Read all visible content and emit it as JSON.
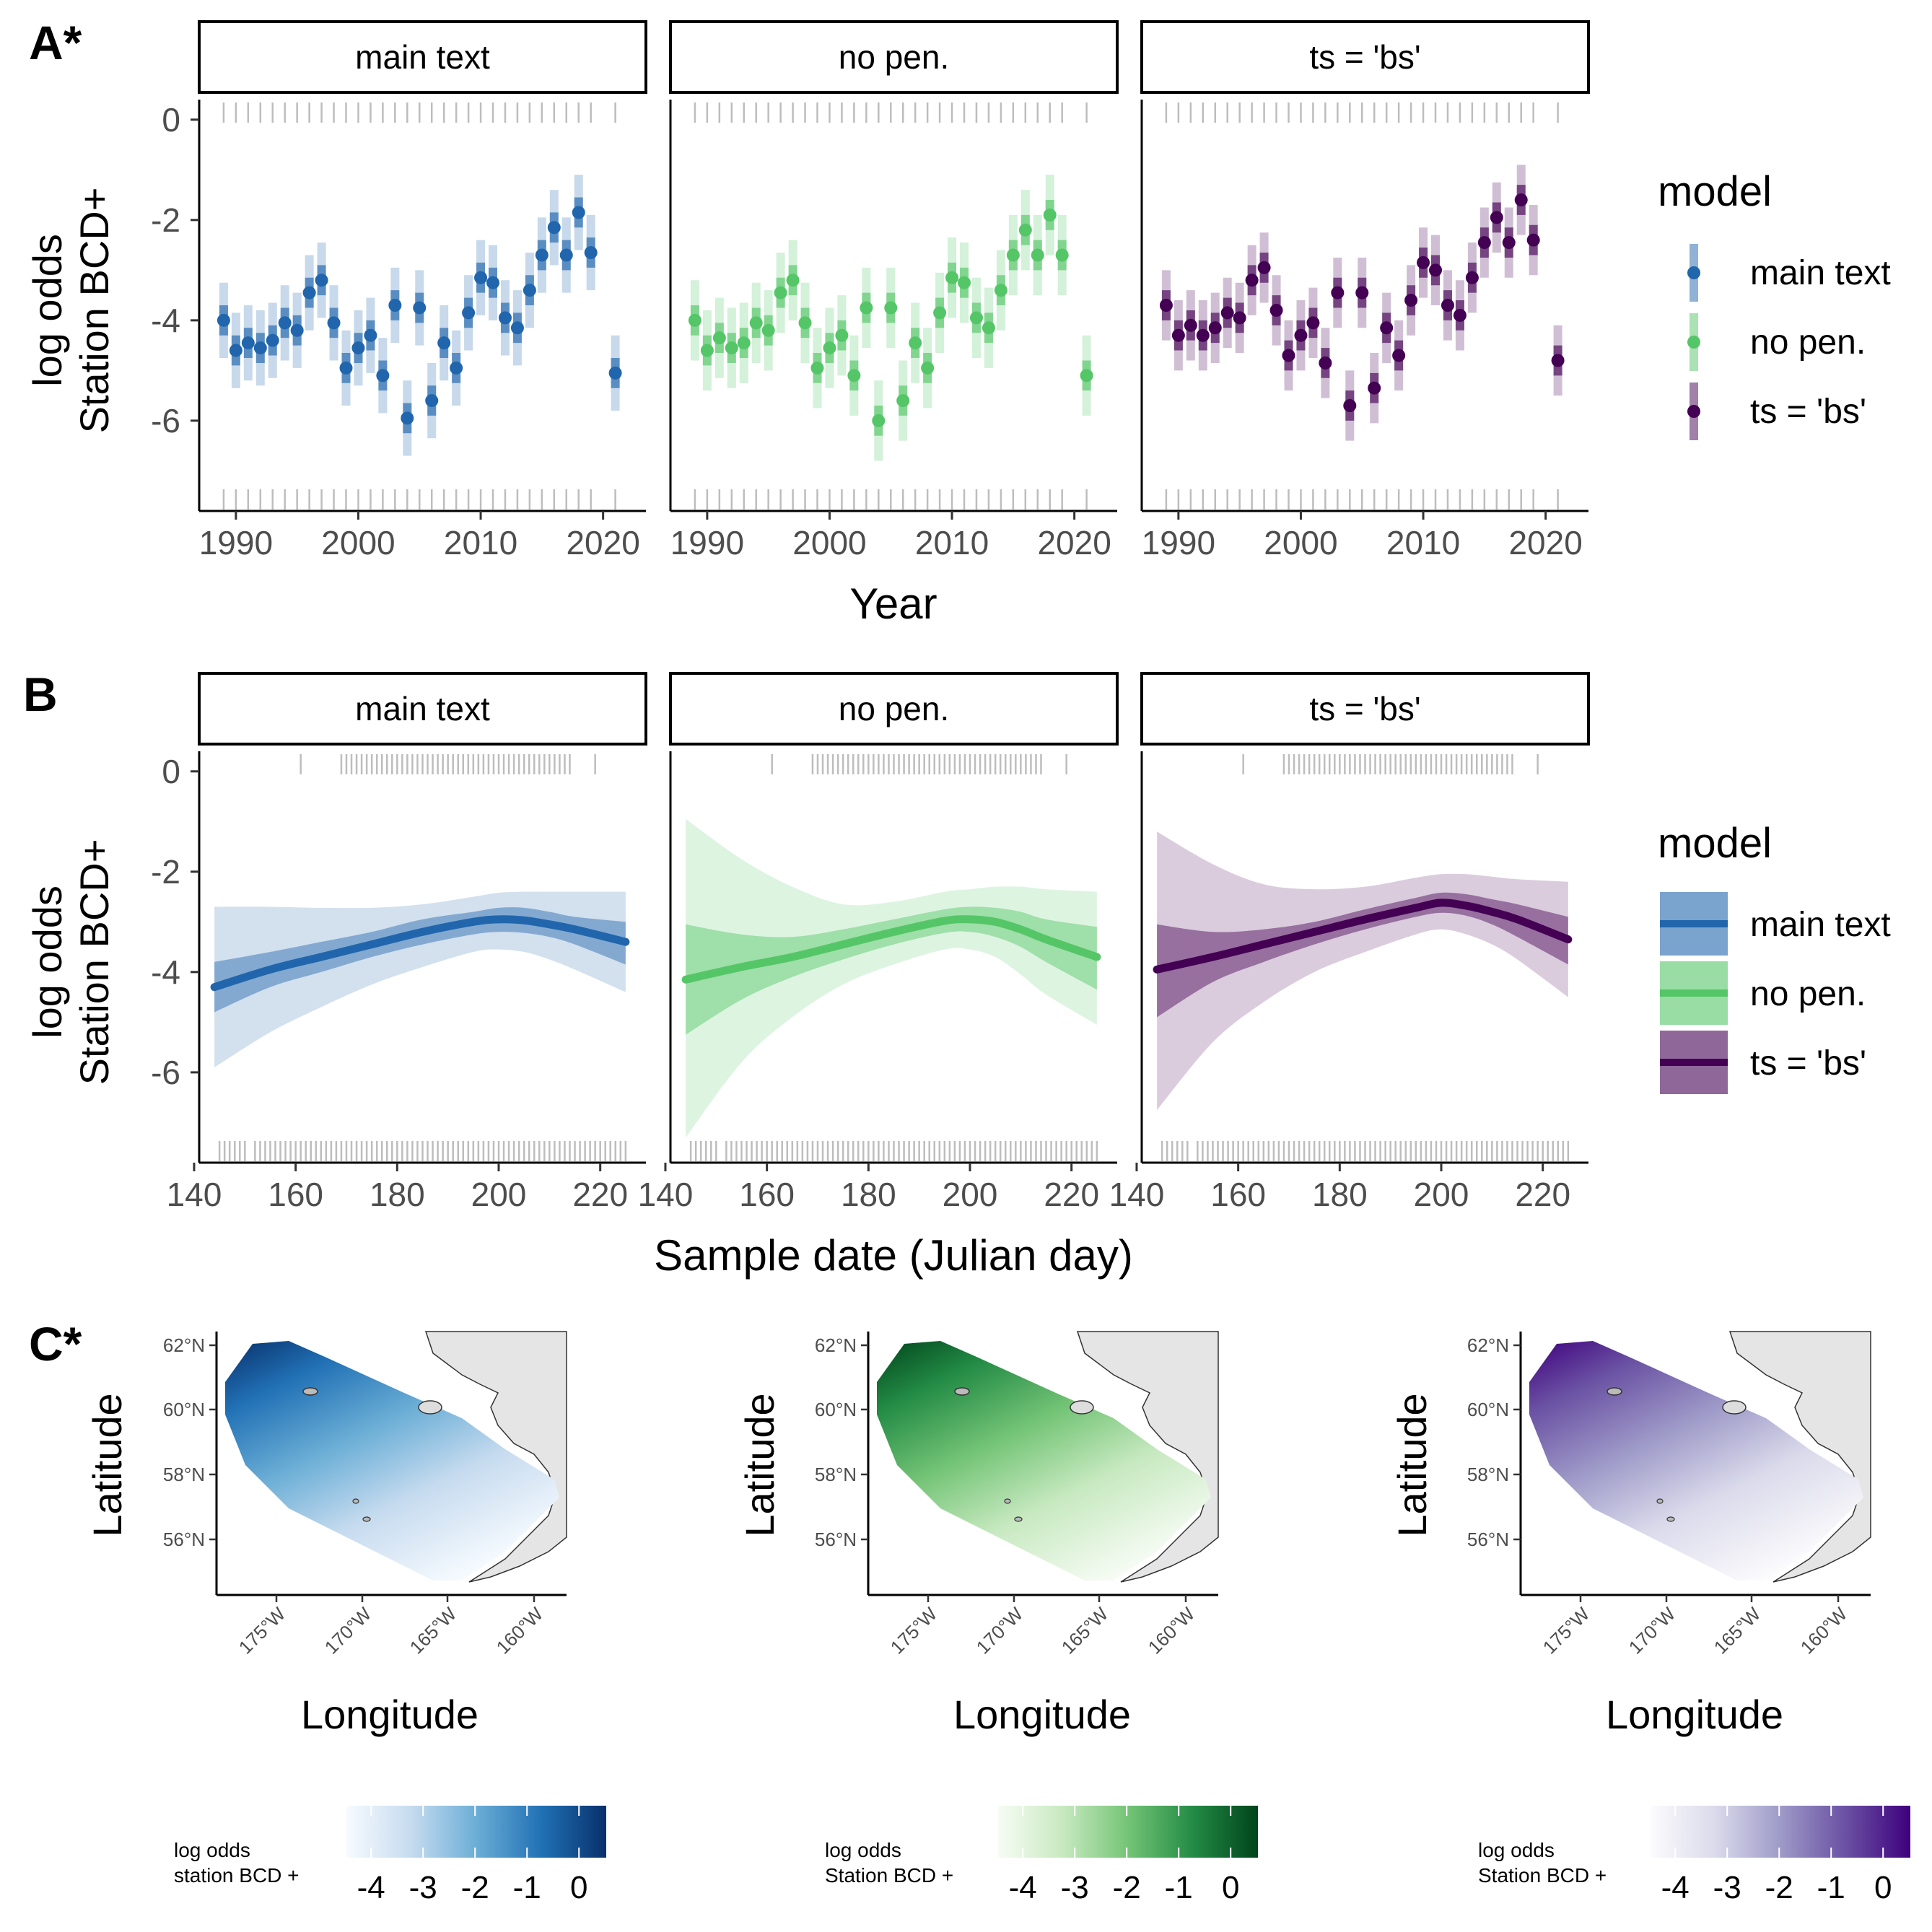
{
  "panel_labels": {
    "A": "A*",
    "B": "B",
    "C": "C*"
  },
  "facets": [
    "main text",
    "no pen.",
    "ts = 'bs'"
  ],
  "colors": {
    "main_text": "#2166ac",
    "no_pen": "#55c667",
    "ts_bs": "#440154",
    "rug": "#bdbdbd",
    "land": "#e5e5e5"
  },
  "legend": {
    "title": "model",
    "entries": [
      "main text",
      "no pen.",
      "ts = 'bs'"
    ]
  },
  "chart_data": [
    {
      "type": "scatter",
      "panel": "A*",
      "xlabel": "Year",
      "ylabel_lines": [
        "log odds",
        "Station BCD+"
      ],
      "xlim": [
        1987,
        2023.5
      ],
      "ylim": [
        -7.8,
        0.4
      ],
      "xticks": [
        1990,
        2000,
        2010,
        2020
      ],
      "yticks": [
        0,
        -2,
        -4,
        -6
      ],
      "x": [
        1989,
        1990,
        1991,
        1992,
        1993,
        1994,
        1995,
        1996,
        1997,
        1998,
        1999,
        2000,
        2001,
        2002,
        2003,
        2004,
        2005,
        2006,
        2007,
        2008,
        2009,
        2010,
        2011,
        2012,
        2013,
        2014,
        2015,
        2016,
        2017,
        2018,
        2019,
        2021
      ],
      "series": [
        {
          "name": "main text",
          "values": [
            -4.0,
            -4.6,
            -4.45,
            -4.55,
            -4.4,
            -4.05,
            -4.2,
            -3.45,
            -3.2,
            -4.05,
            -4.95,
            -4.55,
            -4.3,
            -5.1,
            -3.7,
            -5.95,
            -3.75,
            -5.6,
            -4.45,
            -4.95,
            -3.85,
            -3.15,
            -3.25,
            -3.95,
            -4.15,
            -3.4,
            -2.7,
            -2.15,
            -2.7,
            -1.85,
            -2.65,
            -5.05
          ],
          "inner": 0.3,
          "outer": 0.75
        },
        {
          "name": "no pen.",
          "values": [
            -4.0,
            -4.6,
            -4.35,
            -4.55,
            -4.45,
            -4.05,
            -4.2,
            -3.45,
            -3.2,
            -4.05,
            -4.95,
            -4.55,
            -4.3,
            -5.1,
            -3.75,
            -6.0,
            -3.75,
            -5.6,
            -4.45,
            -4.95,
            -3.85,
            -3.15,
            -3.25,
            -3.95,
            -4.15,
            -3.4,
            -2.7,
            -2.2,
            -2.7,
            -1.9,
            -2.7,
            -5.1
          ],
          "inner": 0.3,
          "outer": 0.8
        },
        {
          "name": "ts = 'bs'",
          "values": [
            -3.7,
            -4.3,
            -4.1,
            -4.3,
            -4.15,
            -3.85,
            -3.95,
            -3.2,
            -2.95,
            -3.8,
            -4.7,
            -4.3,
            -4.05,
            -4.85,
            -3.45,
            -5.7,
            -3.45,
            -5.35,
            -4.15,
            -4.7,
            -3.6,
            -2.85,
            -3.0,
            -3.7,
            -3.9,
            -3.15,
            -2.45,
            -1.95,
            -2.45,
            -1.6,
            -2.4,
            -4.8
          ],
          "inner": 0.3,
          "outer": 0.7
        }
      ],
      "rug_top": [
        1989,
        1990,
        1991,
        1992,
        1993,
        1994,
        1995,
        1996,
        1997,
        1998,
        1999,
        2000,
        2001,
        2002,
        2003,
        2004,
        2005,
        2006,
        2007,
        2008,
        2009,
        2010,
        2011,
        2012,
        2013,
        2014,
        2015,
        2016,
        2017,
        2018,
        2019,
        2021
      ],
      "rug_bottom": [
        1989,
        1990,
        1991,
        1992,
        1993,
        1994,
        1995,
        1996,
        1997,
        1998,
        1999,
        2000,
        2001,
        2002,
        2003,
        2004,
        2005,
        2006,
        2007,
        2008,
        2009,
        2010,
        2011,
        2012,
        2013,
        2014,
        2015,
        2016,
        2017,
        2018,
        2019,
        2021
      ]
    },
    {
      "type": "line",
      "panel": "B",
      "xlabel": "Sample date (Julian day)",
      "ylabel_lines": [
        "log odds",
        "Station BCD+"
      ],
      "xlim": [
        141,
        229
      ],
      "ylim": [
        -7.8,
        0.4
      ],
      "xticks": [
        140,
        160,
        180,
        200,
        220
      ],
      "yticks": [
        0,
        -2,
        -4,
        -6
      ],
      "x": [
        144,
        155,
        165,
        175,
        185,
        195,
        200,
        205,
        210,
        215,
        225
      ],
      "series": [
        {
          "name": "main text",
          "values": [
            -4.3,
            -3.95,
            -3.7,
            -3.45,
            -3.2,
            -3.0,
            -2.95,
            -2.97,
            -3.05,
            -3.15,
            -3.4
          ],
          "inner_lower": [
            -4.8,
            -4.3,
            -4.0,
            -3.7,
            -3.45,
            -3.25,
            -3.2,
            -3.22,
            -3.3,
            -3.45,
            -3.85
          ],
          "inner_upper": [
            -3.8,
            -3.6,
            -3.4,
            -3.2,
            -2.95,
            -2.8,
            -2.72,
            -2.72,
            -2.8,
            -2.9,
            -3.0
          ],
          "outer_lower": [
            -5.9,
            -5.2,
            -4.7,
            -4.25,
            -3.9,
            -3.6,
            -3.55,
            -3.6,
            -3.75,
            -3.95,
            -4.4
          ],
          "outer_upper": [
            -2.7,
            -2.7,
            -2.72,
            -2.72,
            -2.65,
            -2.5,
            -2.42,
            -2.4,
            -2.4,
            -2.4,
            -2.4
          ]
        },
        {
          "name": "no pen.",
          "values": [
            -4.15,
            -3.9,
            -3.7,
            -3.45,
            -3.2,
            -2.98,
            -2.95,
            -3.0,
            -3.15,
            -3.35,
            -3.7
          ],
          "inner_lower": [
            -5.25,
            -4.55,
            -4.1,
            -3.75,
            -3.45,
            -3.22,
            -3.2,
            -3.3,
            -3.5,
            -3.8,
            -4.35
          ],
          "inner_upper": [
            -3.05,
            -3.25,
            -3.3,
            -3.15,
            -2.95,
            -2.75,
            -2.7,
            -2.72,
            -2.8,
            -2.95,
            -3.1
          ],
          "outer_lower": [
            -7.3,
            -5.8,
            -4.9,
            -4.25,
            -3.85,
            -3.55,
            -3.55,
            -3.7,
            -4.05,
            -4.45,
            -5.05
          ],
          "outer_upper": [
            -0.95,
            -1.75,
            -2.3,
            -2.65,
            -2.6,
            -2.4,
            -2.35,
            -2.3,
            -2.3,
            -2.35,
            -2.4
          ]
        },
        {
          "name": "ts = 'bs'",
          "values": [
            -3.95,
            -3.7,
            -3.45,
            -3.2,
            -2.95,
            -2.72,
            -2.62,
            -2.68,
            -2.8,
            -2.95,
            -3.35
          ],
          "inner_lower": [
            -4.9,
            -4.2,
            -3.8,
            -3.45,
            -3.15,
            -2.9,
            -2.82,
            -2.88,
            -3.05,
            -3.3,
            -3.85
          ],
          "inner_upper": [
            -3.05,
            -3.2,
            -3.15,
            -3.0,
            -2.75,
            -2.52,
            -2.42,
            -2.45,
            -2.55,
            -2.65,
            -2.9
          ],
          "outer_lower": [
            -6.75,
            -5.4,
            -4.6,
            -4.0,
            -3.6,
            -3.25,
            -3.15,
            -3.25,
            -3.45,
            -3.75,
            -4.5
          ],
          "outer_upper": [
            -1.2,
            -1.85,
            -2.25,
            -2.35,
            -2.3,
            -2.12,
            -2.05,
            -2.05,
            -2.1,
            -2.15,
            -2.2
          ]
        }
      ],
      "rug_top": [
        161,
        169,
        170,
        171,
        172,
        173,
        174,
        175,
        176,
        177,
        178,
        179,
        180,
        181,
        182,
        183,
        184,
        185,
        186,
        187,
        188,
        189,
        190,
        191,
        192,
        193,
        194,
        195,
        196,
        197,
        198,
        199,
        200,
        201,
        202,
        203,
        204,
        205,
        206,
        207,
        208,
        209,
        210,
        211,
        212,
        213,
        214,
        219
      ],
      "rug_bottom": [
        145,
        146,
        147,
        148,
        149,
        150,
        152,
        153,
        154,
        155,
        156,
        157,
        158,
        159,
        160,
        161,
        162,
        163,
        164,
        165,
        166,
        167,
        168,
        169,
        170,
        171,
        172,
        173,
        174,
        175,
        176,
        177,
        178,
        179,
        180,
        181,
        182,
        183,
        184,
        185,
        186,
        187,
        188,
        189,
        190,
        191,
        192,
        193,
        194,
        195,
        196,
        197,
        198,
        199,
        200,
        201,
        202,
        203,
        204,
        205,
        206,
        207,
        208,
        209,
        210,
        211,
        212,
        213,
        214,
        215,
        216,
        217,
        218,
        219,
        220,
        221,
        222,
        223,
        224,
        225
      ]
    }
  ],
  "maps": {
    "panel": "C*",
    "xlabel": "Longitude",
    "ylabel": "Latitude",
    "lat_ticks": [
      "62°N",
      "60°N",
      "58°N",
      "56°N"
    ],
    "lon_ticks": [
      "175°W",
      "170°W",
      "165°W",
      "160°W"
    ],
    "items": [
      {
        "legend_lines": [
          "log odds",
          "station BCD +"
        ],
        "ramp": [
          "#f7fbff",
          "#c6dbef",
          "#6baed6",
          "#2171b5",
          "#08306b"
        ]
      },
      {
        "legend_lines": [
          "log odds",
          "Station BCD +"
        ],
        "ramp": [
          "#f7fcf5",
          "#c7e9c0",
          "#74c476",
          "#238b45",
          "#00441b"
        ]
      },
      {
        "legend_lines": [
          "log odds",
          "Station BCD +"
        ],
        "ramp": [
          "#fcfbfd",
          "#dadaeb",
          "#9e9ac8",
          "#6a51a3",
          "#3f007d"
        ]
      }
    ],
    "colorbar_ticks": [
      "-4",
      "-3",
      "-2",
      "-1",
      "0"
    ]
  }
}
